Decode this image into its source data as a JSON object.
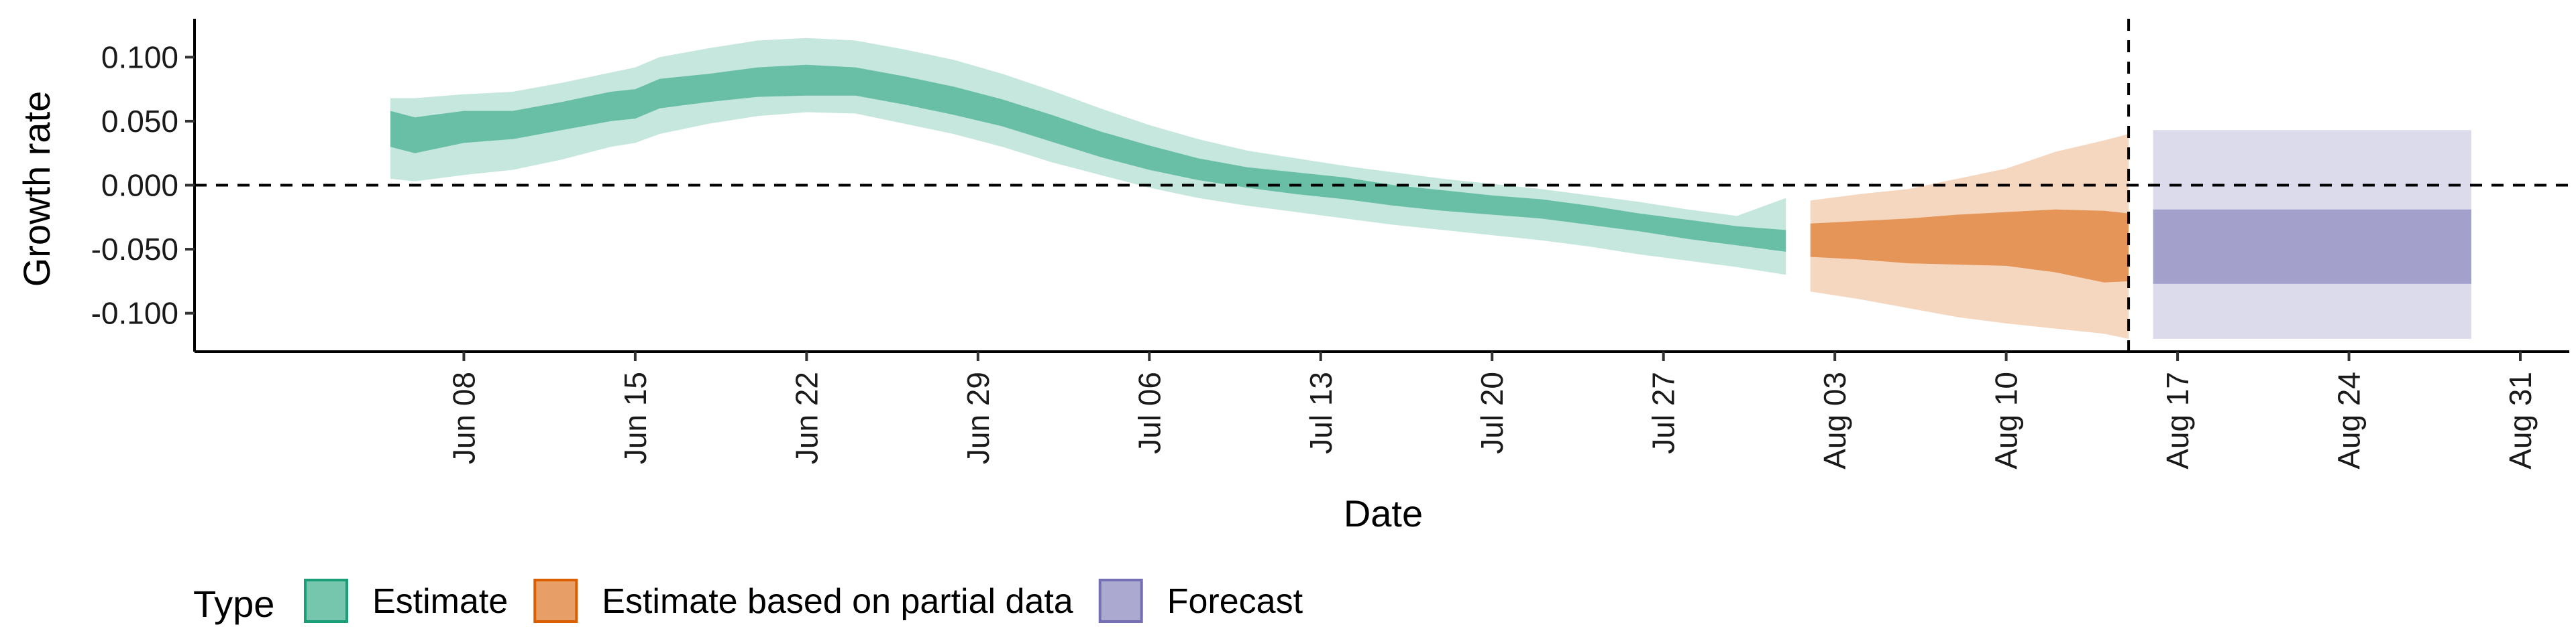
{
  "chart_data": {
    "type": "area",
    "xlabel": "Date",
    "ylabel": "Growth rate",
    "ylim": [
      -0.13,
      0.13
    ],
    "yticks": [
      0.1,
      0.05,
      0.0,
      -0.05,
      -0.1
    ],
    "ytick_labels": [
      "0.100",
      "0.050",
      "0.000",
      "-0.050",
      "-0.100"
    ],
    "xlim": [
      "2020-05-28",
      "2020-09-02"
    ],
    "xticks": [
      "2020-06-08",
      "2020-06-15",
      "2020-06-22",
      "2020-06-29",
      "2020-07-06",
      "2020-07-13",
      "2020-07-20",
      "2020-07-27",
      "2020-08-03",
      "2020-08-10",
      "2020-08-17",
      "2020-08-24",
      "2020-08-31"
    ],
    "xtick_labels": [
      "Jun 08",
      "Jun 15",
      "Jun 22",
      "Jun 29",
      "Jul 06",
      "Jul 13",
      "Jul 20",
      "Jul 27",
      "Aug 03",
      "Aug 10",
      "Aug 17",
      "Aug 24",
      "Aug 31"
    ],
    "reference_lines": {
      "horizontal_y": 0.0,
      "vertical_x": "2020-08-15"
    },
    "legend": {
      "title": "Type",
      "position": "bottom",
      "entries": [
        "Estimate",
        "Estimate based on partial data",
        "Forecast"
      ]
    },
    "series": [
      {
        "name": "Estimate",
        "color": "#1b9e77",
        "x": [
          "2020-06-05",
          "2020-06-06",
          "2020-06-08",
          "2020-06-10",
          "2020-06-12",
          "2020-06-14",
          "2020-06-15",
          "2020-06-16",
          "2020-06-18",
          "2020-06-20",
          "2020-06-22",
          "2020-06-24",
          "2020-06-26",
          "2020-06-28",
          "2020-06-30",
          "2020-07-02",
          "2020-07-04",
          "2020-07-06",
          "2020-07-08",
          "2020-07-10",
          "2020-07-12",
          "2020-07-14",
          "2020-07-16",
          "2020-07-18",
          "2020-07-20",
          "2020-07-22",
          "2020-07-24",
          "2020-07-26",
          "2020-07-28",
          "2020-07-30",
          "2020-08-01"
        ],
        "inner_lower": [
          0.03,
          0.025,
          0.033,
          0.036,
          0.043,
          0.05,
          0.052,
          0.06,
          0.065,
          0.069,
          0.07,
          0.07,
          0.063,
          0.055,
          0.046,
          0.034,
          0.022,
          0.012,
          0.004,
          -0.002,
          -0.007,
          -0.011,
          -0.016,
          -0.02,
          -0.023,
          -0.026,
          -0.031,
          -0.036,
          -0.042,
          -0.047,
          -0.052
        ],
        "inner_upper": [
          0.058,
          0.053,
          0.058,
          0.058,
          0.065,
          0.073,
          0.075,
          0.083,
          0.087,
          0.092,
          0.094,
          0.092,
          0.085,
          0.077,
          0.067,
          0.055,
          0.042,
          0.031,
          0.021,
          0.014,
          0.01,
          0.006,
          0.0,
          -0.004,
          -0.008,
          -0.011,
          -0.016,
          -0.022,
          -0.027,
          -0.032,
          -0.035
        ],
        "outer_lower": [
          0.005,
          0.003,
          0.008,
          0.012,
          0.02,
          0.03,
          0.033,
          0.04,
          0.048,
          0.054,
          0.057,
          0.056,
          0.048,
          0.04,
          0.03,
          0.018,
          0.008,
          -0.002,
          -0.01,
          -0.016,
          -0.021,
          -0.026,
          -0.031,
          -0.035,
          -0.039,
          -0.043,
          -0.048,
          -0.054,
          -0.059,
          -0.064,
          -0.07
        ],
        "outer_upper": [
          0.068,
          0.068,
          0.071,
          0.073,
          0.08,
          0.088,
          0.092,
          0.1,
          0.107,
          0.113,
          0.115,
          0.113,
          0.106,
          0.098,
          0.087,
          0.074,
          0.06,
          0.047,
          0.036,
          0.027,
          0.021,
          0.015,
          0.01,
          0.005,
          0.001,
          -0.003,
          -0.008,
          -0.013,
          -0.019,
          -0.024,
          -0.01
        ]
      },
      {
        "name": "Estimate based on partial data",
        "color": "#d95f02",
        "x": [
          "2020-08-02",
          "2020-08-04",
          "2020-08-06",
          "2020-08-08",
          "2020-08-10",
          "2020-08-12",
          "2020-08-14",
          "2020-08-15"
        ],
        "inner_lower": [
          -0.056,
          -0.058,
          -0.061,
          -0.062,
          -0.063,
          -0.068,
          -0.076,
          -0.075
        ],
        "inner_upper": [
          -0.03,
          -0.028,
          -0.026,
          -0.023,
          -0.021,
          -0.019,
          -0.02,
          -0.022
        ],
        "outer_lower": [
          -0.083,
          -0.089,
          -0.096,
          -0.103,
          -0.108,
          -0.112,
          -0.116,
          -0.12
        ],
        "outer_upper": [
          -0.012,
          -0.007,
          -0.003,
          0.005,
          0.013,
          0.026,
          0.035,
          0.04
        ]
      },
      {
        "name": "Forecast",
        "color": "#7570b3",
        "x": [
          "2020-08-16",
          "2020-08-29"
        ],
        "inner_lower": [
          -0.077,
          -0.077
        ],
        "inner_upper": [
          -0.019,
          -0.019
        ],
        "outer_lower": [
          -0.12,
          -0.12
        ],
        "outer_upper": [
          0.043,
          0.043
        ]
      }
    ]
  }
}
